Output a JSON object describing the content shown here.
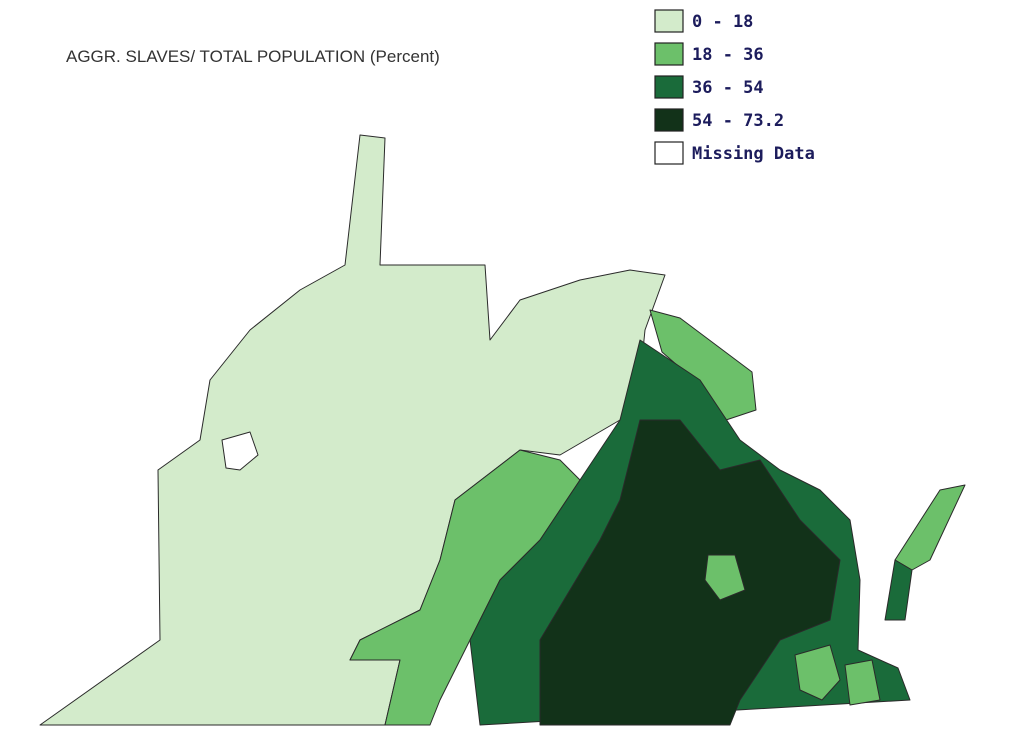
{
  "title": "AGGR. SLAVES/ TOTAL POPULATION (Percent)",
  "legend": [
    {
      "label": "0 - 18",
      "color": "#d3ebcb"
    },
    {
      "label": "18 - 36",
      "color": "#6cc06a"
    },
    {
      "label": "36 - 54",
      "color": "#1a6b3a"
    },
    {
      "label": "54 - 73.2",
      "color": "#123219"
    },
    {
      "label": "Missing Data",
      "color": "#ffffff"
    }
  ]
}
